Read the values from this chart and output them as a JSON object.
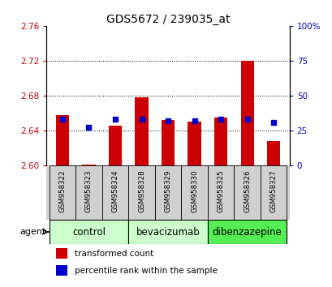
{
  "title": "GDS5672 / 239035_at",
  "samples": [
    "GSM958322",
    "GSM958323",
    "GSM958324",
    "GSM958328",
    "GSM958329",
    "GSM958330",
    "GSM958325",
    "GSM958326",
    "GSM958327"
  ],
  "red_values": [
    2.658,
    2.601,
    2.645,
    2.678,
    2.652,
    2.65,
    2.655,
    2.72,
    2.628
  ],
  "blue_values": [
    33,
    27,
    33,
    33,
    32,
    32,
    33,
    33,
    31
  ],
  "ymin": 2.6,
  "ymax": 2.76,
  "yticks_left": [
    2.6,
    2.64,
    2.68,
    2.72,
    2.76
  ],
  "yticks_right": [
    0,
    25,
    50,
    75,
    100
  ],
  "bar_color": "#cc0000",
  "blue_color": "#0000cc",
  "bg_color": "#ffffff",
  "left_tick_color": "#cc0000",
  "right_tick_color": "#0000cc",
  "title_fontsize": 10,
  "tick_fontsize": 7.5,
  "legend_fontsize": 7.5,
  "group_label_fontsize": 8.5,
  "groups": [
    {
      "name": "control",
      "color": "#ccffcc",
      "start": 0,
      "end": 2
    },
    {
      "name": "bevacizumab",
      "color": "#ccffcc",
      "start": 3,
      "end": 5
    },
    {
      "name": "dibenzazepine",
      "color": "#55ee55",
      "start": 6,
      "end": 8
    }
  ]
}
